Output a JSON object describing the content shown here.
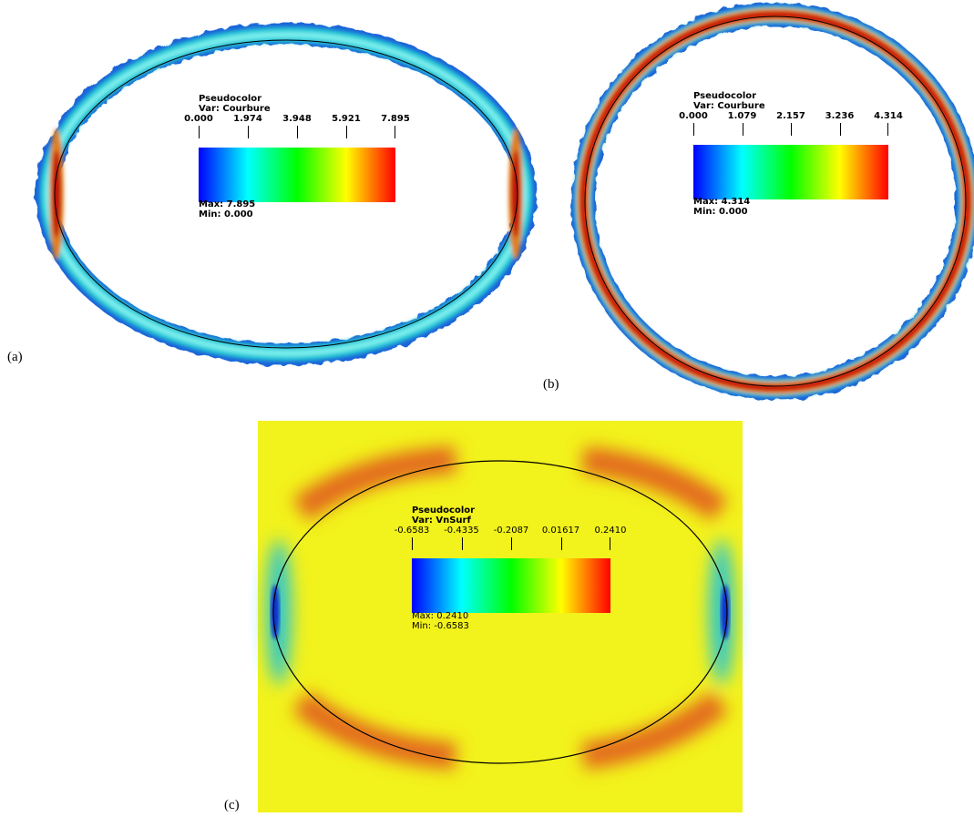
{
  "figure": {
    "panels": [
      {
        "label": "(a)",
        "legend": {
          "title": "Pseudocolor",
          "var": "Var: Courbure",
          "ticks": [
            "0.000",
            "1.974",
            "3.948",
            "5.921",
            "7.895"
          ],
          "max": "Max: 7.895",
          "min": "Min: 0.000"
        }
      },
      {
        "label": "(b)",
        "legend": {
          "title": "Pseudocolor",
          "var": "Var: Courbure",
          "ticks": [
            "0.000",
            "1.079",
            "2.157",
            "3.236",
            "4.314"
          ],
          "max": "Max: 4.314",
          "min": "Min: 0.000"
        }
      },
      {
        "label": "(c)",
        "legend": {
          "title": "Pseudocolor",
          "var": "Var: VnSurf",
          "ticks": [
            "-0.6583",
            "-0.4335",
            "-0.2087",
            "0.01617",
            "0.2410"
          ],
          "max": "Max:  0.2410",
          "min": "Min: -0.6583"
        }
      }
    ],
    "colors": {
      "background_c": "#f2f21c",
      "colormap": [
        "#0000ff",
        "#00ffff",
        "#00ff00",
        "#ffff00",
        "#ff0000"
      ]
    }
  }
}
